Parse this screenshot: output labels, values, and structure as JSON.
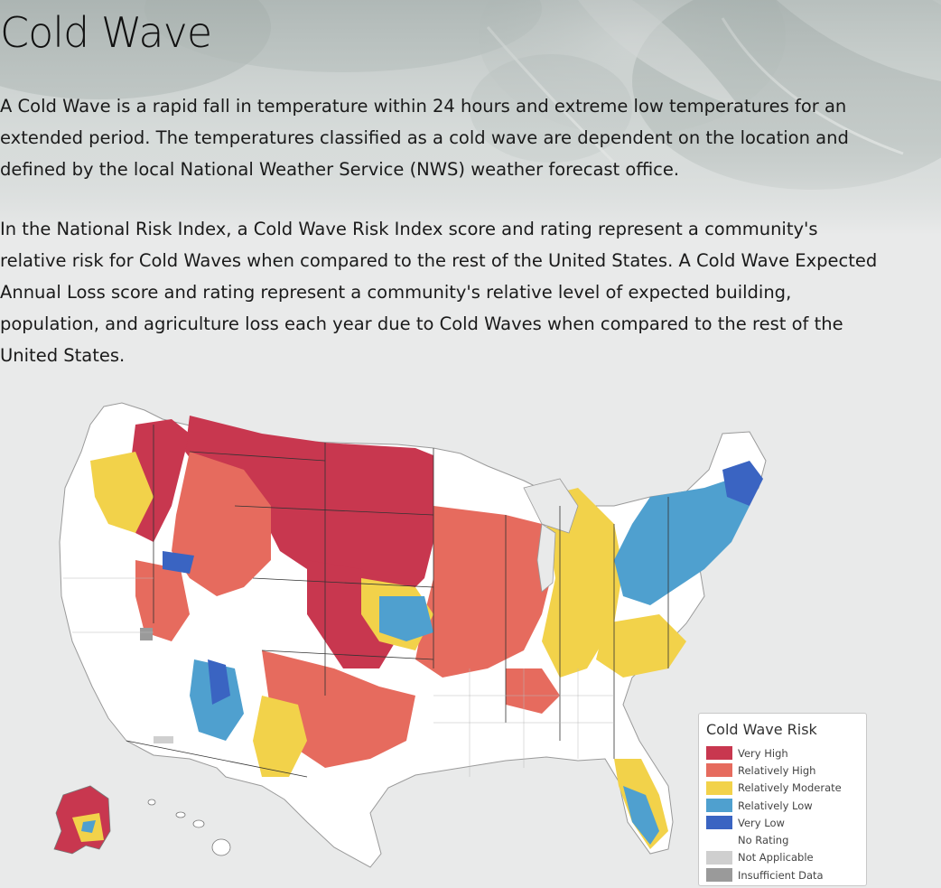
{
  "page": {
    "title": "Cold Wave",
    "paragraphs": [
      "A Cold Wave is a rapid fall in temperature within 24 hours and extreme low temperatures for an extended period. The temperatures classified as a cold wave are dependent on the location and defined by the local National Weather Service (NWS) weather forecast office.",
      "In the National Risk Index, a Cold Wave Risk Index score and rating represent a community's relative risk for Cold Waves when compared to the rest of the United States. A Cold Wave Expected Annual Loss score and rating represent a community's relative level of expected building, population, and agriculture loss each year due to Cold Waves when compared to the rest of the United States."
    ]
  },
  "map": {
    "legend": {
      "title": "Cold Wave Risk",
      "items": [
        {
          "label": "Very High",
          "color": "#c8374f"
        },
        {
          "label": "Relatively High",
          "color": "#e66b5e"
        },
        {
          "label": "Relatively Moderate",
          "color": "#f2d24a"
        },
        {
          "label": "Relatively Low",
          "color": "#4fa0cf"
        },
        {
          "label": "Very Low",
          "color": "#3a64c2"
        },
        {
          "label": "No Rating",
          "color": "#ffffff"
        },
        {
          "label": "Not Applicable",
          "color": "#cfcfcf"
        },
        {
          "label": "Insufficient Data",
          "color": "#9a9a9a"
        }
      ]
    }
  }
}
